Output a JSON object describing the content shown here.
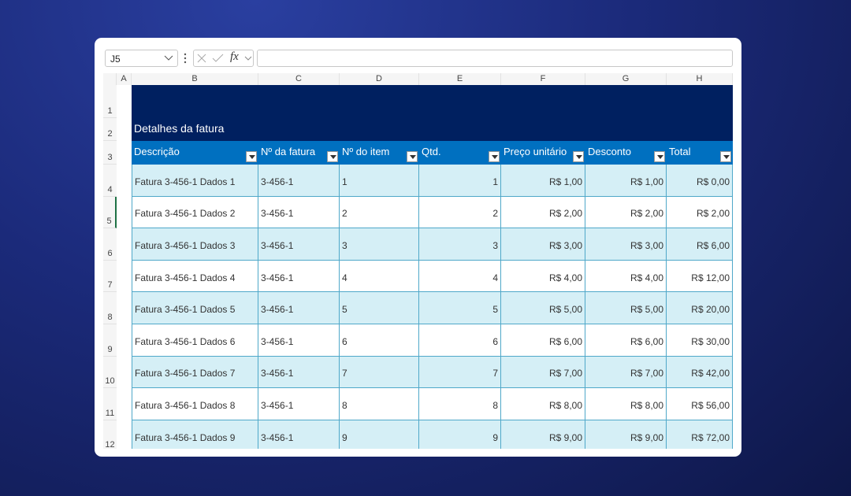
{
  "formula_bar": {
    "name_box": "J5",
    "fx": "fx"
  },
  "columns": [
    "A",
    "B",
    "C",
    "D",
    "E",
    "F",
    "G",
    "H"
  ],
  "row_numbers": [
    "1",
    "2",
    "3",
    "4",
    "5",
    "6",
    "7",
    "8",
    "9",
    "10",
    "11",
    "12"
  ],
  "title": "Detalhes da fatura",
  "table": {
    "headers": [
      "Descrição",
      "Nº da fatura",
      "Nº do item",
      "Qtd.",
      "Preço unitário",
      "Desconto",
      "Total"
    ],
    "rows": [
      [
        "Fatura 3-456-1 Dados 1",
        "3-456-1",
        "1",
        "1",
        "R$ 1,00",
        "R$ 1,00",
        "R$ 0,00"
      ],
      [
        "Fatura 3-456-1 Dados 2",
        "3-456-1",
        "2",
        "2",
        "R$ 2,00",
        "R$ 2,00",
        "R$ 2,00"
      ],
      [
        "Fatura 3-456-1 Dados 3",
        "3-456-1",
        "3",
        "3",
        "R$ 3,00",
        "R$ 3,00",
        "R$ 6,00"
      ],
      [
        "Fatura 3-456-1 Dados 4",
        "3-456-1",
        "4",
        "4",
        "R$ 4,00",
        "R$ 4,00",
        "R$ 12,00"
      ],
      [
        "Fatura 3-456-1 Dados 5",
        "3-456-1",
        "5",
        "5",
        "R$ 5,00",
        "R$ 5,00",
        "R$ 20,00"
      ],
      [
        "Fatura 3-456-1 Dados 6",
        "3-456-1",
        "6",
        "6",
        "R$ 6,00",
        "R$ 6,00",
        "R$ 30,00"
      ],
      [
        "Fatura 3-456-1 Dados 7",
        "3-456-1",
        "7",
        "7",
        "R$ 7,00",
        "R$ 7,00",
        "R$ 42,00"
      ],
      [
        "Fatura 3-456-1 Dados 8",
        "3-456-1",
        "8",
        "8",
        "R$ 8,00",
        "R$ 8,00",
        "R$ 56,00"
      ],
      [
        "Fatura 3-456-1 Dados 9",
        "3-456-1",
        "9",
        "9",
        "R$ 9,00",
        "R$ 9,00",
        "R$ 72,00"
      ]
    ]
  }
}
